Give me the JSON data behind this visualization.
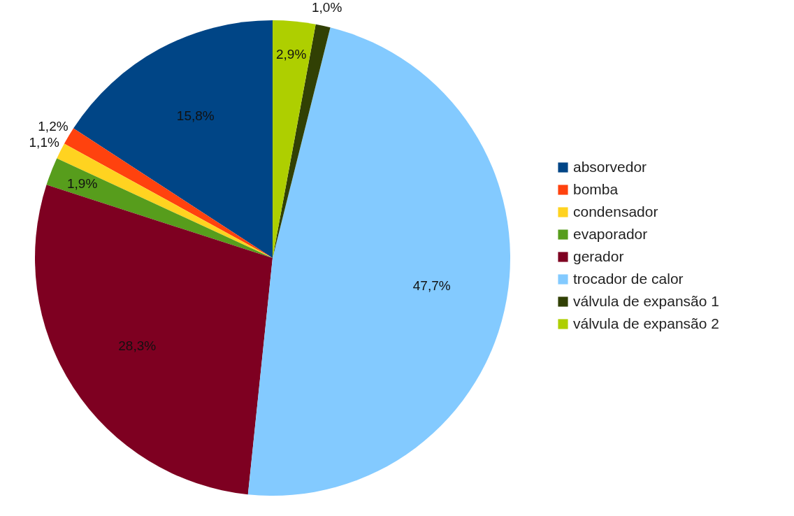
{
  "chart_data": {
    "type": "pie",
    "categories": [
      "absorvedor",
      "bomba",
      "condensador",
      "evaporador",
      "gerador",
      "trocador de calor",
      "válvula de expansão 1",
      "válvula de expansão 2"
    ],
    "values": [
      15.8,
      1.2,
      1.1,
      1.9,
      28.3,
      47.7,
      1.0,
      2.9
    ],
    "colors": [
      "#004586",
      "#ff420e",
      "#ffd320",
      "#579d1c",
      "#7e0021",
      "#83caff",
      "#314004",
      "#aecf00"
    ],
    "value_labels": [
      "15,8%",
      "1,2%",
      "1,1%",
      "1,9%",
      "28,3%",
      "47,7%",
      "1,0%",
      "2,9%"
    ],
    "legend": "right"
  }
}
